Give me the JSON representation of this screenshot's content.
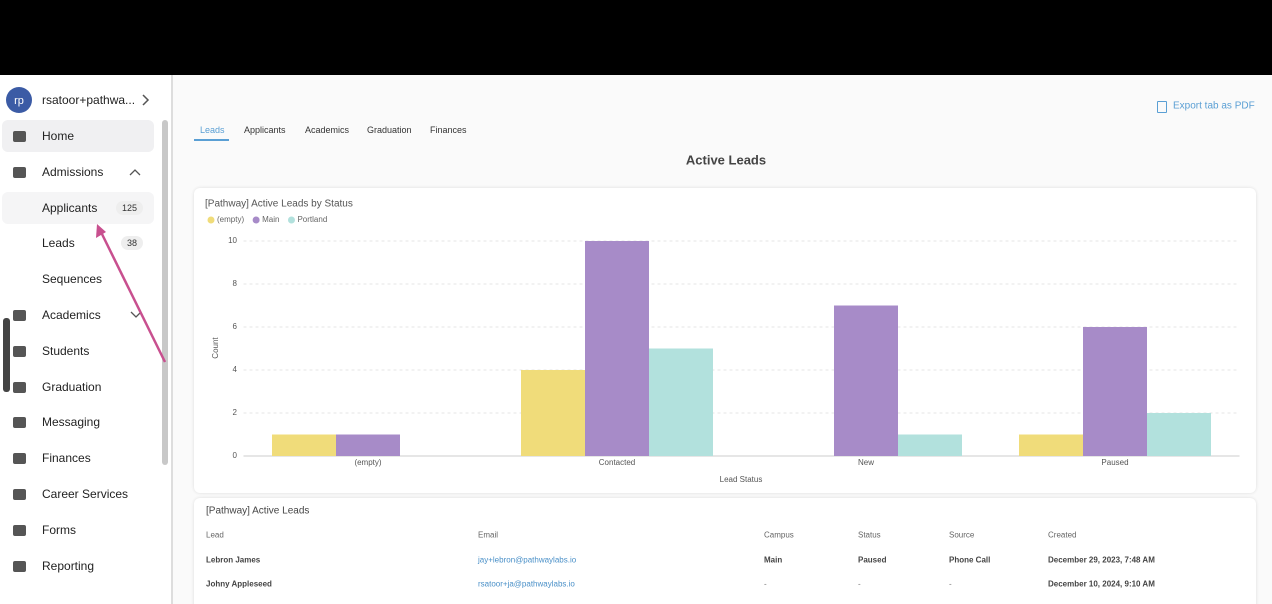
{
  "sidebar": {
    "avatar": "rp",
    "account": "rsatoor+pathwa...",
    "nav": [
      {
        "label": "Home"
      },
      {
        "label": "Admissions",
        "children": [
          {
            "label": "Applicants",
            "count": 125
          },
          {
            "label": "Leads",
            "count": 38
          },
          {
            "label": "Sequences"
          }
        ]
      },
      {
        "label": "Academics"
      },
      {
        "label": "Students"
      },
      {
        "label": "Graduation"
      },
      {
        "label": "Messaging"
      },
      {
        "label": "Finances"
      },
      {
        "label": "Career Services"
      },
      {
        "label": "Forms"
      },
      {
        "label": "Reporting"
      }
    ]
  },
  "tabs": [
    "Leads",
    "Applicants",
    "Academics",
    "Graduation",
    "Finances"
  ],
  "export": "Export tab as PDF",
  "page_title": "Active Leads",
  "chart_data": {
    "type": "bar",
    "title": "[Pathway] Active Leads by Status",
    "categories": [
      "(empty)",
      "Contacted",
      "New",
      "Paused"
    ],
    "series": [
      {
        "name": "(empty)",
        "color": "#f0dc7a",
        "values": [
          1,
          4,
          null,
          1
        ]
      },
      {
        "name": "Main",
        "color": "#a78bc8",
        "values": [
          1,
          10,
          7,
          6
        ]
      },
      {
        "name": "Portland",
        "color": "#b2e1dd",
        "values": [
          null,
          5,
          1,
          2
        ]
      }
    ],
    "xlabel": "Lead Status",
    "ylabel": "Count",
    "ylim": [
      0,
      10
    ],
    "yticks": [
      0,
      2,
      4,
      6,
      8,
      10
    ],
    "grid": true
  },
  "table": {
    "title": "[Pathway] Active Leads",
    "headers": [
      "Lead",
      "Email",
      "Campus",
      "Status",
      "Source",
      "Created"
    ],
    "rows": [
      [
        "Lebron James",
        "jay+lebron@pathwaylabs.io",
        "Main",
        "Paused",
        "Phone Call",
        "December 29, 2023, 7:48 AM"
      ],
      [
        "Johny Appleseed",
        "rsatoor+ja@pathwaylabs.io",
        "-",
        "-",
        "-",
        "December 10, 2024, 9:10 AM"
      ]
    ]
  }
}
